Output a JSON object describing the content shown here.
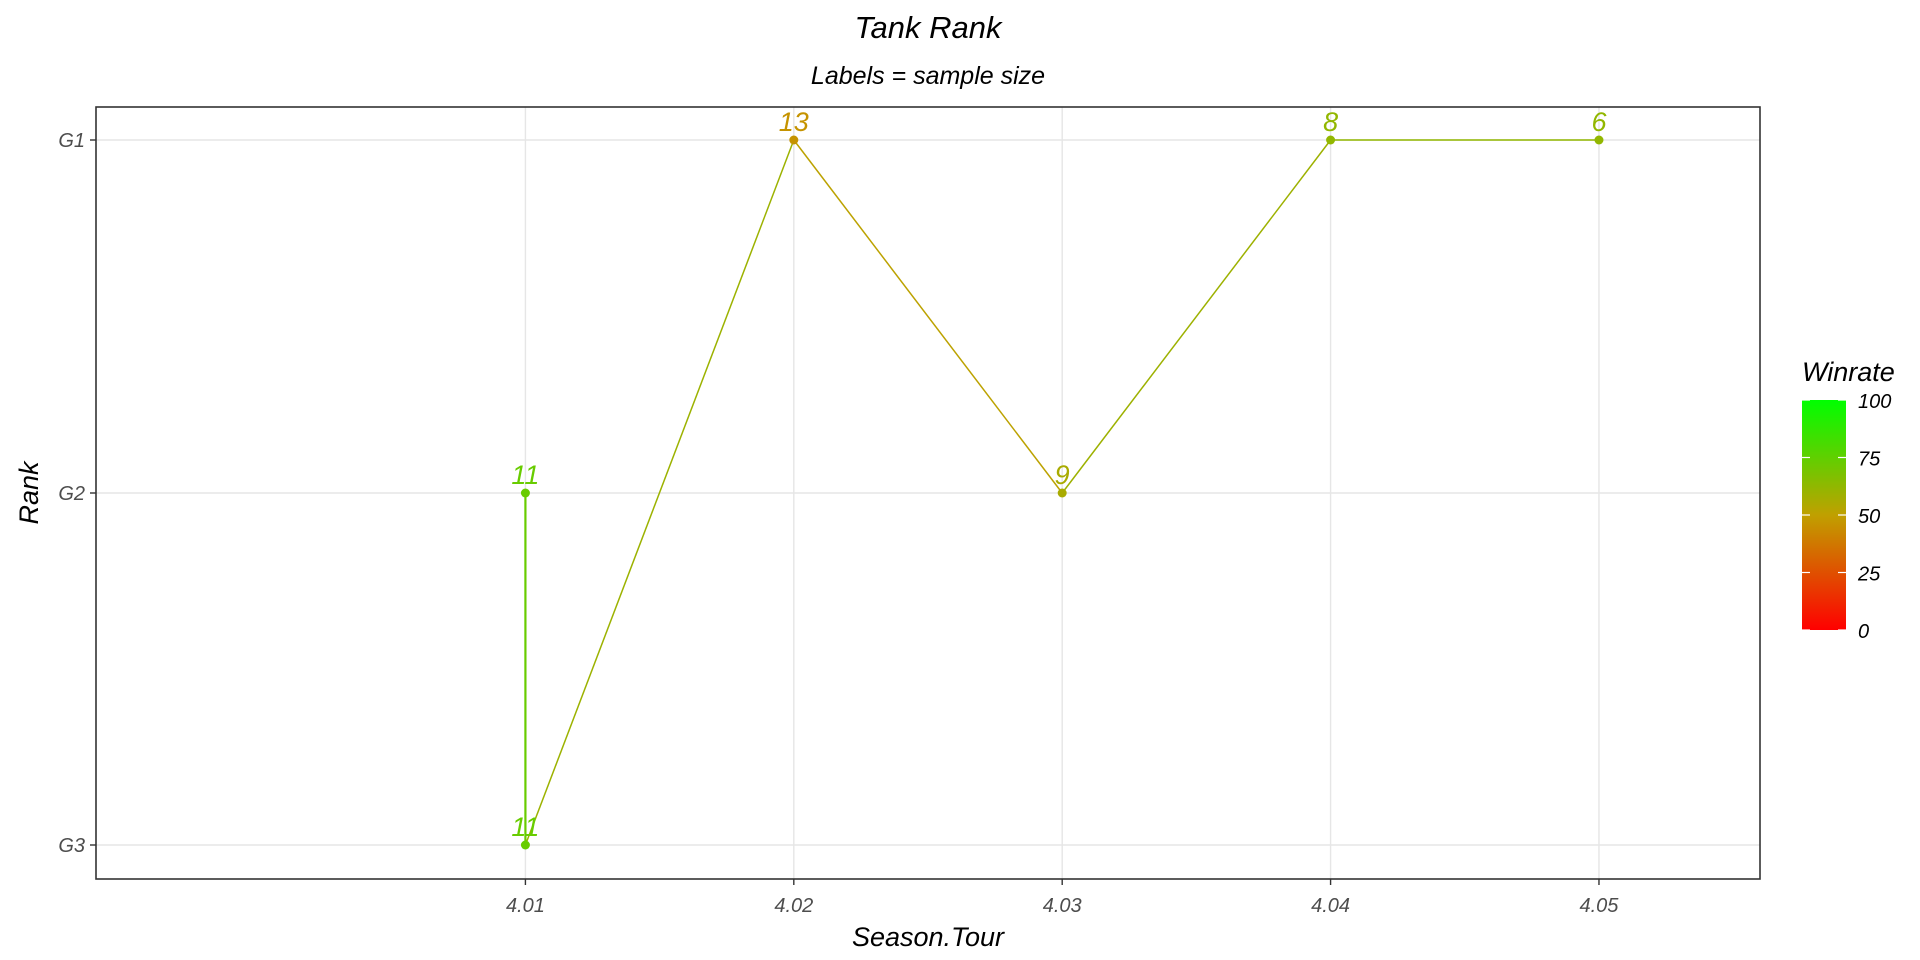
{
  "chart_data": {
    "type": "line",
    "title": "Tank Rank",
    "subtitle": "Labels = sample size",
    "xlabel": "Season.Tour",
    "ylabel": "Rank",
    "x_ticks": [
      "4.01",
      "4.02",
      "4.03",
      "4.04",
      "4.05"
    ],
    "y_categories": [
      "G1",
      "G2",
      "G3"
    ],
    "xlim": [
      3.994,
      4.056
    ],
    "grid": true,
    "legend": {
      "title": "Winrate",
      "placement": "right",
      "ticks": [
        "0",
        "25",
        "50",
        "75",
        "100"
      ],
      "range": [
        0,
        100
      ],
      "low_color": "#ff0000",
      "high_color": "#00ff00"
    },
    "points": [
      {
        "x": 4.01,
        "rank": "G2",
        "label": "11",
        "winrate": 73
      },
      {
        "x": 4.01,
        "rank": "G3",
        "label": "11",
        "winrate": 73
      },
      {
        "x": 4.02,
        "rank": "G1",
        "label": "13",
        "winrate": 46
      },
      {
        "x": 4.03,
        "rank": "G2",
        "label": "9",
        "winrate": 56
      },
      {
        "x": 4.04,
        "rank": "G1",
        "label": "8",
        "winrate": 62
      },
      {
        "x": 4.05,
        "rank": "G1",
        "label": "6",
        "winrate": 62
      }
    ]
  }
}
